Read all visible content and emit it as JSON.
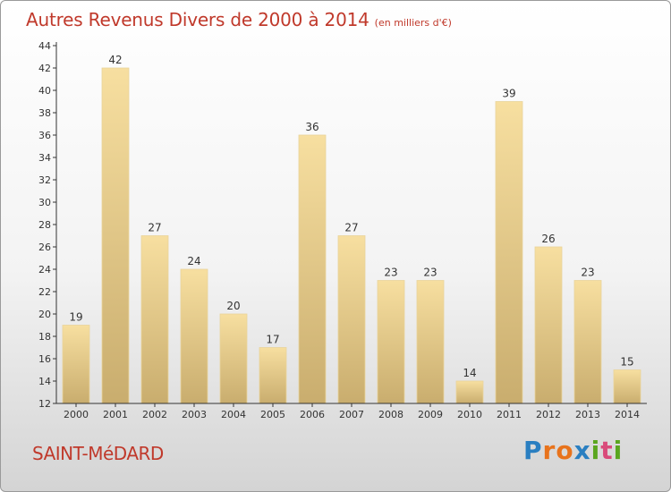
{
  "title": "Autres Revenus Divers de 2000 à 2014",
  "title_unit": "(en milliers d'€)",
  "town": "SAINT-MéDARD",
  "brand": {
    "letters": [
      "P",
      "r",
      "o",
      "x",
      "i",
      "t",
      "i"
    ],
    "colors": [
      "#2a7fc1",
      "#e8731c",
      "#e8731c",
      "#2a7fc1",
      "#5aa61f",
      "#d94a7a",
      "#5aa61f"
    ]
  },
  "colors": {
    "accent": "#c0392b",
    "bar_top": "#f7dfa0",
    "bar_bottom": "#c9ad6e"
  },
  "chart_data": {
    "type": "bar",
    "title": "Autres Revenus Divers de 2000 à 2014",
    "categories": [
      "2000",
      "2001",
      "2002",
      "2003",
      "2004",
      "2005",
      "2006",
      "2007",
      "2008",
      "2009",
      "2010",
      "2011",
      "2012",
      "2013",
      "2014"
    ],
    "values": [
      19,
      42,
      27,
      24,
      20,
      17,
      36,
      27,
      23,
      23,
      14,
      39,
      26,
      23,
      15
    ],
    "yticks": [
      12,
      14,
      16,
      18,
      20,
      22,
      24,
      26,
      28,
      30,
      32,
      34,
      36,
      38,
      40,
      42,
      44
    ],
    "ylim": [
      12,
      44
    ],
    "grid": false,
    "legend": "none"
  }
}
